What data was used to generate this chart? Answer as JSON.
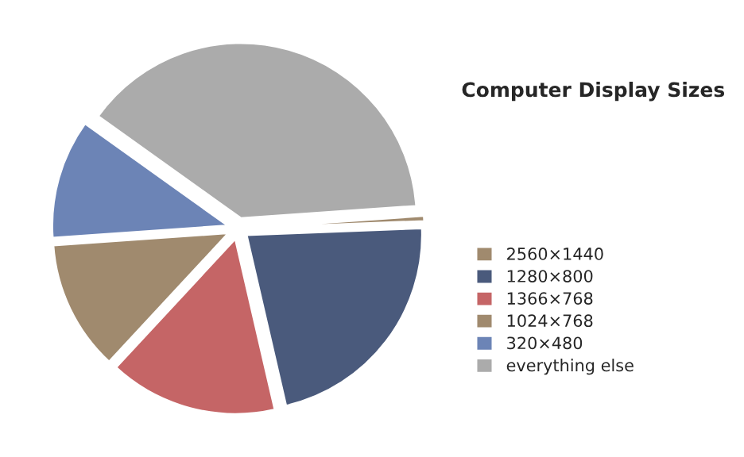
{
  "chart_data": {
    "type": "pie",
    "title": "Computer Display Sizes",
    "categories": [
      "2560×1440",
      "1280×800",
      "1366×768",
      "1024×768",
      "320×480",
      "everything else"
    ],
    "values": [
      0.5,
      22,
      15.5,
      12,
      11,
      39
    ],
    "colors": [
      "#a08a6e",
      "#4a5a7c",
      "#c56566",
      "#a08a6e",
      "#6c84b6",
      "#ababab"
    ],
    "legend": "right"
  }
}
